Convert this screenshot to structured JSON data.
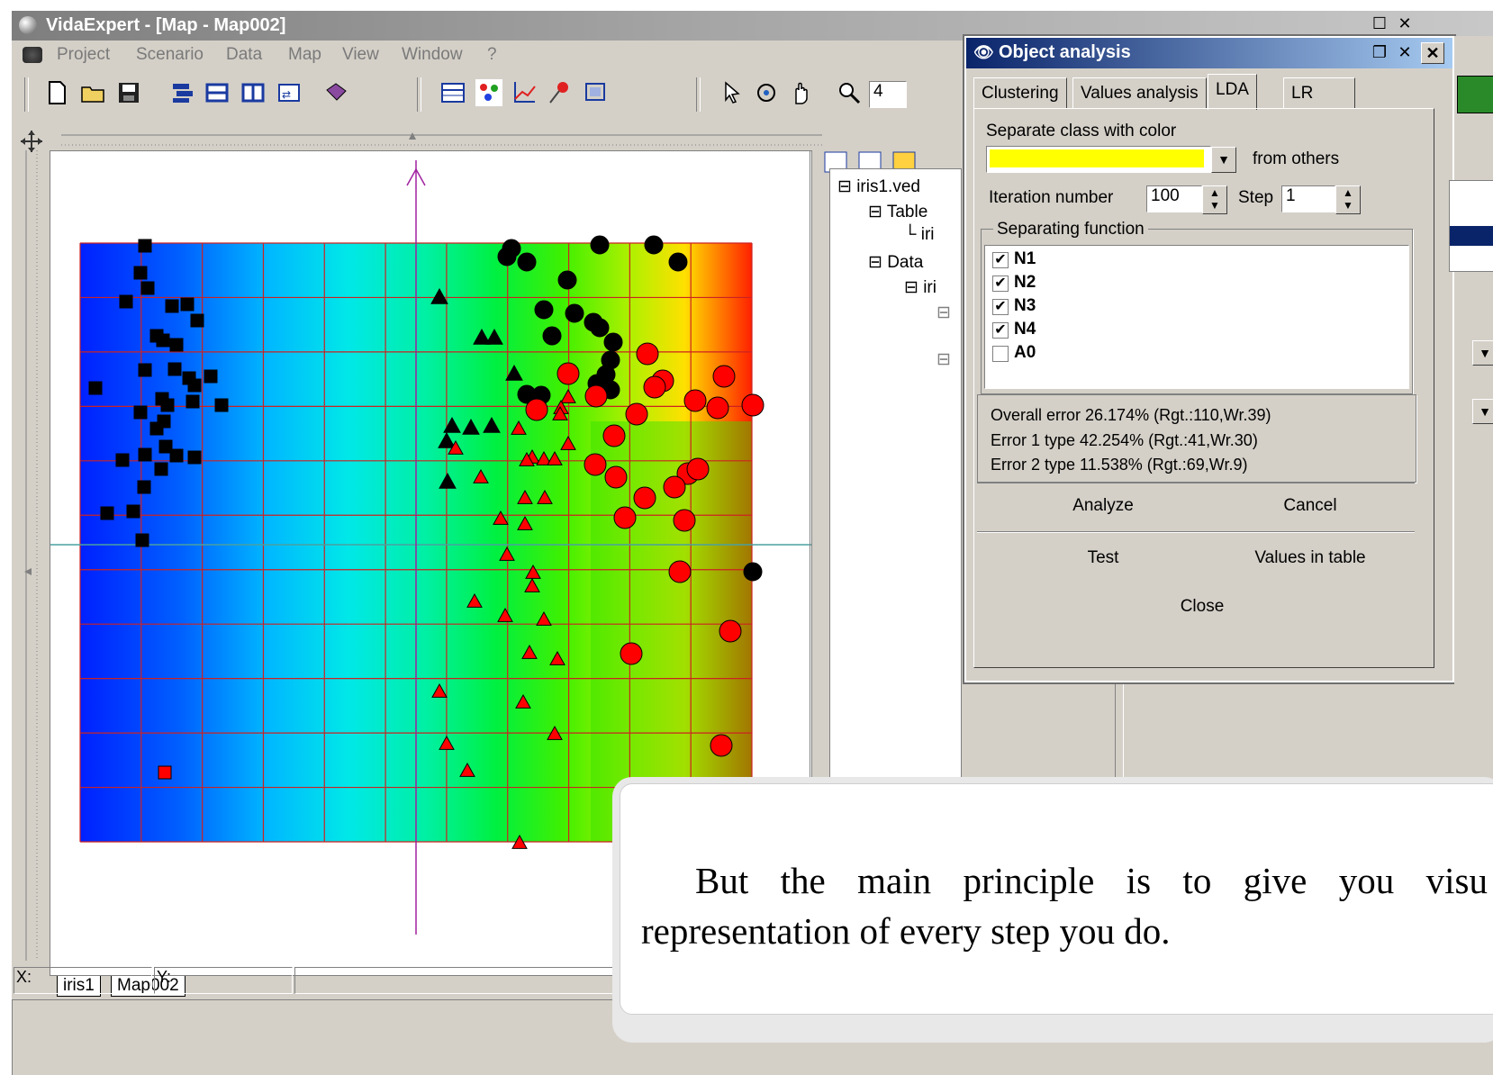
{
  "window": {
    "title": "VidaExpert - [Map - Map002]"
  },
  "menu": {
    "items": [
      "Project",
      "Scenario",
      "Data",
      "Map",
      "View",
      "Window",
      "?"
    ]
  },
  "toolbar": {
    "zoom_value": "4"
  },
  "tree": {
    "items": [
      "iris1.ved",
      "Table",
      "iri",
      "Data",
      "iri"
    ]
  },
  "map": {
    "tabs": [
      "iris1",
      "Map002"
    ]
  },
  "status": {
    "x_label": "X:",
    "y_label": "Y:"
  },
  "dialog": {
    "title": "Object analysis",
    "tabs": [
      "Clustering",
      "Values analysis",
      "LDA",
      "LR"
    ],
    "active_tab": "LDA",
    "separate_label": "Separate class with color",
    "separate_color": "#ffff00",
    "from_others": "from others",
    "iteration_label": "Iteration number",
    "iteration_value": "100",
    "step_label": "Step",
    "step_value": "1",
    "separating_function_label": "Separating function",
    "functions": [
      {
        "label": "N1",
        "checked": true
      },
      {
        "label": "N2",
        "checked": true
      },
      {
        "label": "N3",
        "checked": true
      },
      {
        "label": "N4",
        "checked": true
      },
      {
        "label": "A0",
        "checked": false
      }
    ],
    "overall_error": "Overall error 26.174% (Rgt.:110,Wr.39)",
    "error1": "Error 1 type 42.254% (Rgt.:41,Wr.30)",
    "error2": "Error 2 type 11.538% (Rgt.:69,Wr.9)",
    "buttons": {
      "analyze": "Analyze",
      "cancel": "Cancel",
      "test": "Test",
      "values_in_table": "Values in table",
      "close": "Close"
    }
  },
  "callout": {
    "text": "But the main principle is to give you visu representation of every step you do."
  },
  "colors": {
    "black_class": "#000000",
    "red_class": "#ff0000",
    "grid_line": "#cc2222",
    "axis_line": "#a020a0"
  },
  "icons": [
    "new-file-icon",
    "open-folder-icon",
    "save-icon",
    "pointer-icon",
    "rotate-icon",
    "hand-icon",
    "zoom-icon",
    "pin-icon"
  ]
}
